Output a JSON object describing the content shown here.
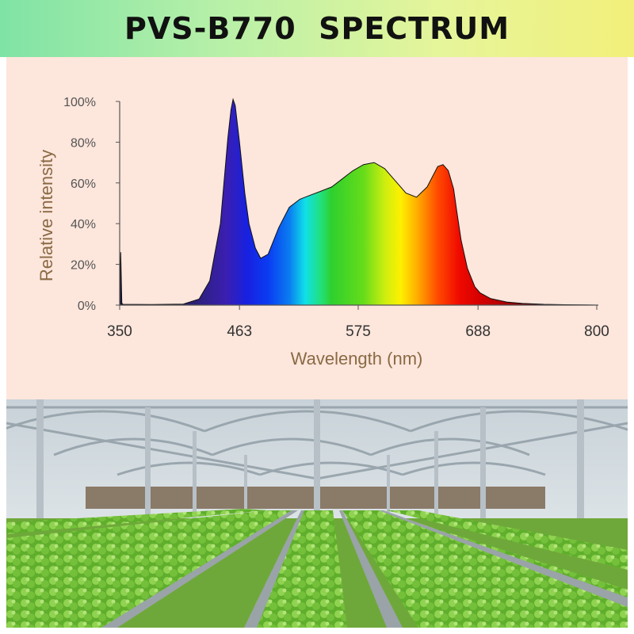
{
  "header": {
    "title": "PVS-B770  SPECTRUM"
  },
  "chart_data": {
    "type": "area",
    "title": "PVS-B770  SPECTRUM",
    "xlabel": "Wavelength (nm)",
    "ylabel": "Relative intensity",
    "xlim": [
      350,
      800
    ],
    "ylim": [
      0,
      100
    ],
    "x_ticks": [
      "350",
      "463",
      "575",
      "688",
      "800"
    ],
    "y_ticks": [
      "0%",
      "20%",
      "40%",
      "60%",
      "80%",
      "100%"
    ],
    "grid": false,
    "series": [
      {
        "x": [
          350,
          351,
          352,
          353,
          380,
          410,
          425,
          435,
          445,
          452,
          455,
          457,
          459,
          463,
          468,
          472,
          478,
          483,
          490,
          500,
          510,
          520,
          530,
          540,
          550,
          560,
          570,
          580,
          590,
          600,
          610,
          620,
          630,
          640,
          650,
          655,
          660,
          665,
          668,
          672,
          678,
          685,
          690,
          700,
          715,
          730,
          750,
          770,
          790,
          800
        ],
        "y": [
          0.5,
          26,
          1,
          0.4,
          0.3,
          0.5,
          3,
          12,
          40,
          82,
          96,
          101,
          98,
          80,
          55,
          40,
          28,
          23,
          25,
          38,
          48,
          52,
          54,
          56,
          58,
          62,
          66,
          69,
          70,
          67,
          61,
          55,
          53,
          58,
          68,
          69,
          66,
          57,
          46,
          32,
          18,
          9,
          6,
          3.2,
          1.5,
          0.8,
          0.4,
          0.2,
          0.1,
          0
        ]
      }
    ]
  }
}
